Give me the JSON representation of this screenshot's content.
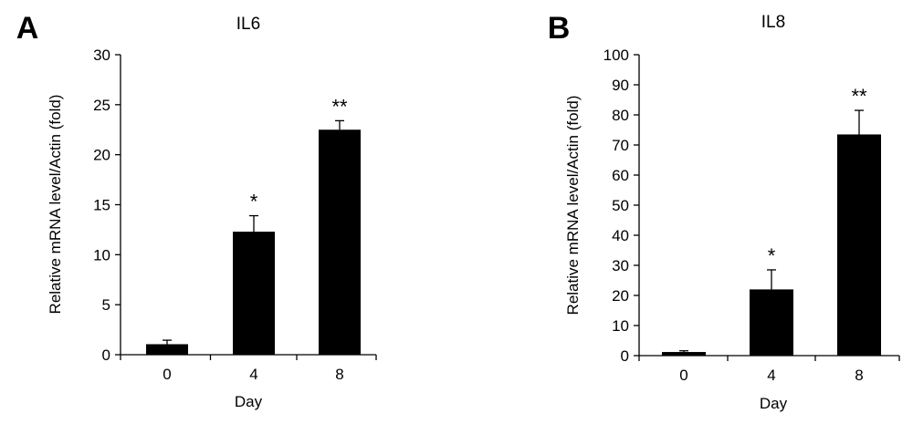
{
  "chart_data": [
    {
      "panel_label": "A",
      "type": "bar",
      "title": "IL6",
      "xlabel": "Day",
      "ylabel": "Relative mRNA level/Actin (fold)",
      "categories": [
        "0",
        "4",
        "8"
      ],
      "values": [
        1.05,
        12.3,
        22.5
      ],
      "errors": [
        0.4,
        1.6,
        0.9
      ],
      "annotations": [
        "",
        "*",
        "**"
      ],
      "ylim": [
        0,
        30
      ],
      "yticks": [
        0,
        5,
        10,
        15,
        20,
        25,
        30
      ],
      "grid": false,
      "bar_color": "#000000"
    },
    {
      "panel_label": "B",
      "type": "bar",
      "title": "IL8",
      "xlabel": "Day",
      "ylabel": "Relative mRNA level/Actin (fold)",
      "categories": [
        "0",
        "4",
        "8"
      ],
      "values": [
        1.2,
        22.0,
        73.5
      ],
      "errors": [
        0.4,
        6.5,
        8.0
      ],
      "annotations": [
        "",
        "*",
        "**"
      ],
      "ylim": [
        0,
        100
      ],
      "yticks": [
        0,
        10,
        20,
        30,
        40,
        50,
        60,
        70,
        80,
        90,
        100
      ],
      "grid": false,
      "bar_color": "#000000"
    }
  ]
}
